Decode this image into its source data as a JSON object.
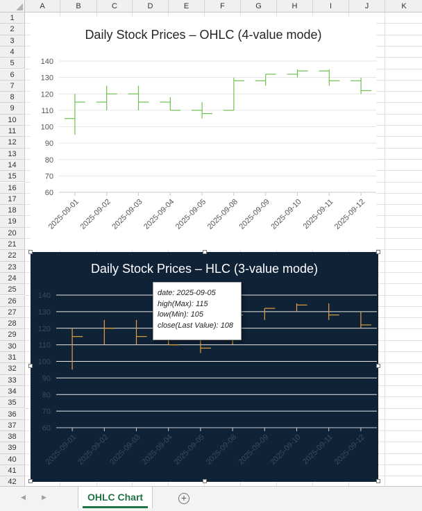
{
  "spreadsheet": {
    "columns": [
      "A",
      "B",
      "C",
      "D",
      "E",
      "F",
      "G",
      "H",
      "I",
      "J",
      "K"
    ],
    "rows": [
      "1",
      "2",
      "3",
      "4",
      "5",
      "6",
      "7",
      "8",
      "9",
      "10",
      "11",
      "12",
      "13",
      "14",
      "15",
      "16",
      "17",
      "18",
      "19",
      "20",
      "21",
      "22",
      "23",
      "24",
      "25",
      "26",
      "27",
      "28",
      "29",
      "30",
      "31",
      "32",
      "33",
      "34",
      "35",
      "36",
      "37",
      "38",
      "39",
      "40",
      "41",
      "42"
    ]
  },
  "charts": [
    {
      "title": "Daily Stock Prices – OHLC (4-value mode)",
      "background": "#ffffff",
      "title_color": "#262626",
      "grid_color": "#e6e6e6",
      "axis_label_color": "#555555",
      "series_color": "#70c050",
      "mode": "ohlc"
    },
    {
      "title": "Daily Stock Prices – HLC (3-value mode)",
      "background": "#0f2236",
      "title_color": "#ffffff",
      "grid_color": "#e8e8e8",
      "axis_label_color": "#3d4a5a",
      "series_color": "#e0a040",
      "mode": "hlc"
    }
  ],
  "chart_data": [
    {
      "type": "ohlc",
      "title": "Daily Stock Prices – OHLC (4-value mode)",
      "categories": [
        "2025-09-01",
        "2025-09-02",
        "2025-09-03",
        "2025-09-04",
        "2025-09-05",
        "2025-09-08",
        "2025-09-09",
        "2025-09-10",
        "2025-09-11",
        "2025-09-12"
      ],
      "open": [
        105,
        115,
        120,
        115,
        110,
        110,
        128,
        132,
        134,
        128
      ],
      "high": [
        120,
        125,
        125,
        118,
        115,
        130,
        132,
        135,
        135,
        130
      ],
      "low": [
        95,
        110,
        110,
        110,
        105,
        110,
        125,
        130,
        125,
        120
      ],
      "close": [
        115,
        120,
        115,
        110,
        108,
        128,
        132,
        134,
        128,
        122
      ],
      "ylim": [
        60,
        140
      ],
      "yticks": [
        60,
        70,
        80,
        90,
        100,
        110,
        120,
        130,
        140
      ],
      "grid": true,
      "legend": "none"
    },
    {
      "type": "hlc",
      "title": "Daily Stock Prices – HLC (3-value mode)",
      "categories": [
        "2025-09-01",
        "2025-09-02",
        "2025-09-03",
        "2025-09-04",
        "2025-09-05",
        "2025-09-08",
        "2025-09-09",
        "2025-09-10",
        "2025-09-11",
        "2025-09-12"
      ],
      "high": [
        120,
        125,
        125,
        118,
        115,
        130,
        132,
        135,
        135,
        130
      ],
      "low": [
        95,
        110,
        110,
        110,
        105,
        110,
        125,
        130,
        125,
        120
      ],
      "close": [
        115,
        120,
        115,
        110,
        108,
        128,
        132,
        134,
        128,
        122
      ],
      "ylim": [
        60,
        140
      ],
      "yticks": [
        60,
        70,
        80,
        90,
        100,
        110,
        120,
        130,
        140
      ],
      "grid": true,
      "legend": "none"
    }
  ],
  "tooltip": {
    "date": "date: 2025-09-05",
    "high": "high(Max): 115",
    "low": "low(Min): 105",
    "close": "close(Last Value): 108"
  },
  "tabs": {
    "active_label": "OHLC Chart",
    "prev_icon": "◀",
    "next_icon": "▶",
    "add_icon": "+"
  }
}
